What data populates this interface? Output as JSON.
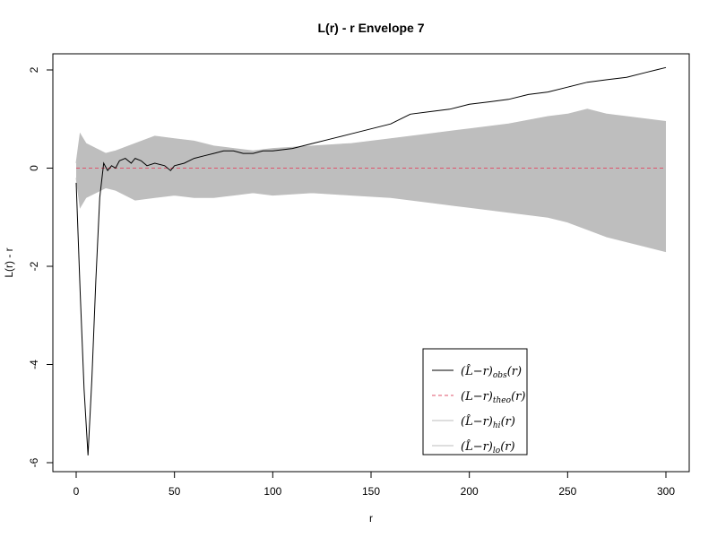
{
  "chart_data": {
    "type": "line",
    "title": "L(r) - r Envelope 7",
    "xlabel": "r",
    "ylabel": "L(r) - r",
    "xlim": [
      0,
      300
    ],
    "ylim": [
      -6,
      2
    ],
    "x_ticks": [
      0,
      50,
      100,
      150,
      200,
      250,
      300
    ],
    "x_tick_labels": [
      "0",
      "50",
      "100",
      "150",
      "200",
      "250",
      "300"
    ],
    "y_ticks": [
      -6,
      -4,
      -2,
      0,
      2
    ],
    "y_tick_labels": [
      "-6",
      "-4",
      "-2",
      "0",
      "2"
    ],
    "grid": false,
    "legend_position": "bottom-center",
    "series": [
      {
        "name": "obs",
        "label_main": "(L̂−r)",
        "label_sub": "obs",
        "label_tail": "(r)",
        "color": "#000000",
        "style": "solid",
        "x": [
          0,
          2,
          4,
          6,
          8,
          10,
          12,
          14,
          16,
          18,
          20,
          22,
          25,
          28,
          30,
          33,
          36,
          40,
          45,
          48,
          50,
          55,
          60,
          65,
          70,
          75,
          80,
          85,
          90,
          95,
          100,
          110,
          120,
          130,
          140,
          150,
          160,
          170,
          180,
          190,
          200,
          210,
          220,
          230,
          240,
          250,
          260,
          270,
          280,
          290,
          295,
          300
        ],
        "y": [
          -0.3,
          -2.5,
          -4.5,
          -5.85,
          -4.3,
          -2.3,
          -0.6,
          0.1,
          -0.05,
          0.05,
          0.0,
          0.15,
          0.2,
          0.1,
          0.2,
          0.15,
          0.05,
          0.1,
          0.05,
          -0.05,
          0.05,
          0.1,
          0.2,
          0.25,
          0.3,
          0.35,
          0.35,
          0.3,
          0.3,
          0.35,
          0.35,
          0.4,
          0.5,
          0.6,
          0.7,
          0.8,
          0.9,
          1.1,
          1.15,
          1.2,
          1.3,
          1.35,
          1.4,
          1.5,
          1.55,
          1.65,
          1.75,
          1.8,
          1.85,
          1.95,
          2.0,
          2.05
        ]
      },
      {
        "name": "theo",
        "label_main": "(L−r)",
        "label_sub": "theo",
        "label_tail": "(r)",
        "color": "#DF536B",
        "style": "dashed",
        "x": [
          0,
          300
        ],
        "y": [
          0,
          0
        ]
      },
      {
        "name": "hi",
        "label_main": "(L̂−r)",
        "label_sub": "hi",
        "label_tail": "(r)",
        "color": "#BEBEBE",
        "style": "solid",
        "x": [
          0,
          2,
          5,
          10,
          15,
          20,
          30,
          40,
          50,
          60,
          70,
          80,
          90,
          100,
          120,
          140,
          160,
          180,
          200,
          220,
          240,
          250,
          260,
          270,
          280,
          290,
          300
        ],
        "y": [
          0.1,
          0.7,
          0.5,
          0.4,
          0.3,
          0.35,
          0.5,
          0.65,
          0.6,
          0.55,
          0.45,
          0.4,
          0.35,
          0.4,
          0.45,
          0.5,
          0.6,
          0.7,
          0.8,
          0.9,
          1.05,
          1.1,
          1.2,
          1.1,
          1.05,
          1.0,
          0.95
        ]
      },
      {
        "name": "lo",
        "label_main": "(L̂−r)",
        "label_sub": "lo",
        "label_tail": "(r)",
        "color": "#BEBEBE",
        "style": "solid",
        "x": [
          0,
          2,
          5,
          10,
          15,
          20,
          30,
          40,
          50,
          60,
          70,
          80,
          90,
          100,
          120,
          140,
          160,
          180,
          200,
          220,
          240,
          250,
          260,
          270,
          280,
          290,
          300
        ],
        "y": [
          -0.2,
          -0.8,
          -0.6,
          -0.5,
          -0.4,
          -0.45,
          -0.65,
          -0.6,
          -0.55,
          -0.6,
          -0.6,
          -0.55,
          -0.5,
          -0.55,
          -0.5,
          -0.55,
          -0.6,
          -0.7,
          -0.8,
          -0.9,
          -1.0,
          -1.1,
          -1.25,
          -1.4,
          -1.5,
          -1.6,
          -1.7
        ]
      }
    ]
  }
}
